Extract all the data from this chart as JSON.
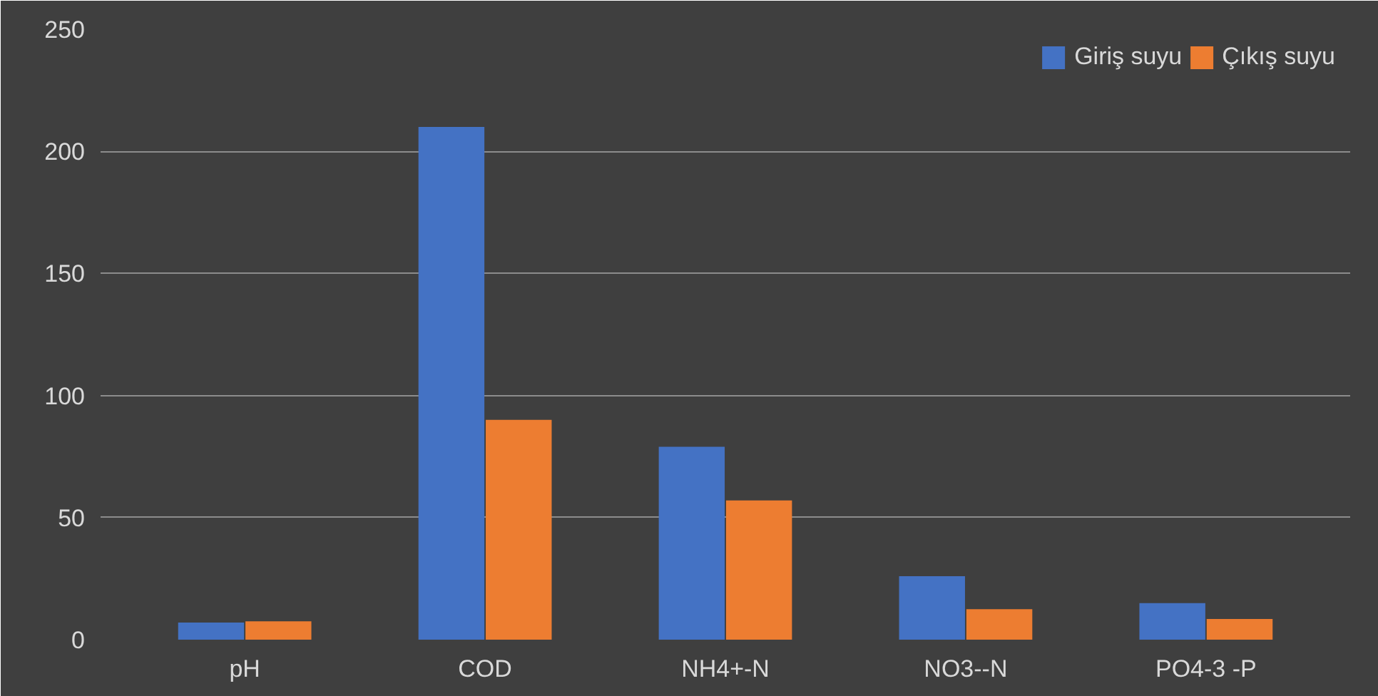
{
  "chart_data": {
    "type": "bar",
    "categories": [
      "pH",
      "COD",
      "NH4+-N",
      "NO3--N",
      "PO4-3 -P"
    ],
    "series": [
      {
        "name": "Giriş suyu",
        "color": "#4472c4",
        "values": [
          7,
          210,
          79,
          26,
          15
        ]
      },
      {
        "name": "Çıkış suyu",
        "color": "#ed7d31",
        "values": [
          7.5,
          90,
          57,
          12.5,
          8.5
        ]
      }
    ],
    "ylim": [
      0,
      250
    ],
    "yticks": [
      0,
      50,
      100,
      150,
      200,
      250
    ],
    "grid": "y",
    "legend": "top right"
  }
}
